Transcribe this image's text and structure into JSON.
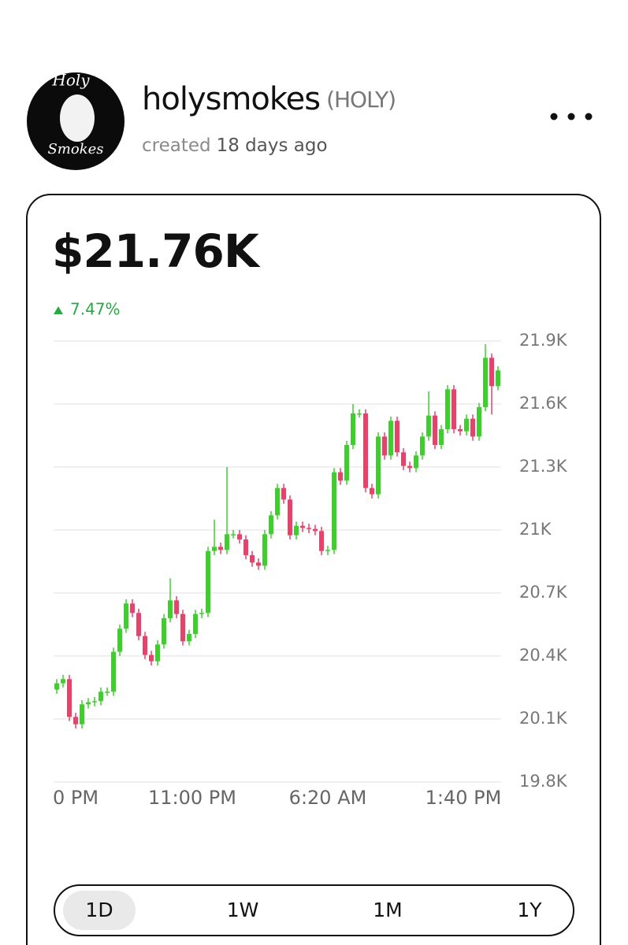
{
  "header": {
    "avatar_top": "Holy",
    "avatar_bottom": "Smokes",
    "name": "holysmokes",
    "ticker": "(HOLY)",
    "created_prefix": "created",
    "created_age": "18 days ago"
  },
  "price": "$21.76K",
  "change": "7.47%",
  "chart_data": {
    "type": "candlestick",
    "up_color": "#3ecf2d",
    "down_color": "#e8416a",
    "grid": true,
    "open": [
      20240,
      20270,
      20290,
      20110,
      20075,
      20170,
      20180,
      20185,
      20230,
      20230,
      20420,
      20530,
      20650,
      20605,
      20495,
      20405,
      20375,
      20455,
      20580,
      20665,
      20600,
      20470,
      20505,
      20600,
      20605,
      20900,
      20920,
      20905,
      20980,
      20980,
      20955,
      20880,
      20845,
      20830,
      20980,
      21070,
      21200,
      21145,
      20975,
      21020,
      21010,
      21005,
      20995,
      20900,
      20905,
      21275,
      21235,
      21405,
      21555,
      21555,
      21200,
      21170,
      21445,
      21355,
      21520,
      21370,
      21305,
      21295,
      21355,
      21445,
      21545,
      21405,
      21480,
      21670,
      21480,
      21470,
      21530,
      21445,
      21585,
      21820,
      21685
    ],
    "high": [
      20290,
      20310,
      20310,
      20130,
      20190,
      20200,
      20205,
      20250,
      20250,
      20440,
      20550,
      20670,
      20670,
      20625,
      20515,
      20425,
      20475,
      20600,
      20770,
      20685,
      20620,
      20525,
      20620,
      20625,
      20920,
      21050,
      20940,
      21300,
      21000,
      21000,
      20975,
      20900,
      20865,
      21000,
      21090,
      21220,
      21220,
      21165,
      21040,
      21040,
      21030,
      21025,
      21015,
      20925,
      21295,
      21295,
      21425,
      21600,
      21575,
      21575,
      21220,
      21465,
      21465,
      21540,
      21540,
      21390,
      21325,
      21375,
      21465,
      21660,
      21565,
      21500,
      21690,
      21690,
      21500,
      21550,
      21550,
      21605,
      21885,
      21840,
      21780
    ],
    "low": [
      20220,
      20250,
      20090,
      20055,
      20055,
      20150,
      20160,
      20165,
      20210,
      20210,
      20400,
      20510,
      20585,
      20475,
      20385,
      20355,
      20355,
      20435,
      20560,
      20580,
      20450,
      20450,
      20485,
      20580,
      20585,
      20880,
      20885,
      20885,
      20960,
      20935,
      20860,
      20825,
      20810,
      20810,
      20960,
      21050,
      21125,
      20955,
      20955,
      20990,
      20985,
      20975,
      20880,
      20880,
      20885,
      21215,
      21215,
      21385,
      21535,
      21180,
      21150,
      21150,
      21335,
      21335,
      21350,
      21285,
      21275,
      21275,
      21335,
      21425,
      21385,
      21385,
      21460,
      21460,
      21450,
      21450,
      21425,
      21425,
      21565,
      21550,
      21665
    ],
    "close": [
      20270,
      20290,
      20110,
      20075,
      20170,
      20180,
      20185,
      20230,
      20230,
      20420,
      20530,
      20650,
      20605,
      20495,
      20405,
      20375,
      20455,
      20580,
      20665,
      20600,
      20470,
      20505,
      20600,
      20605,
      20900,
      20920,
      20905,
      20980,
      20980,
      20955,
      20880,
      20845,
      20830,
      20980,
      21070,
      21200,
      21145,
      20975,
      21020,
      21010,
      21005,
      20995,
      20900,
      20905,
      21275,
      21235,
      21405,
      21555,
      21555,
      21200,
      21170,
      21445,
      21355,
      21520,
      21370,
      21305,
      21295,
      21355,
      21445,
      21545,
      21405,
      21480,
      21670,
      21480,
      21470,
      21530,
      21445,
      21585,
      21820,
      21685,
      21760
    ],
    "xlim": [
      -0.5,
      70.5
    ],
    "xticks": [
      {
        "value": 3,
        "label": "0 PM"
      },
      {
        "value": 21.5,
        "label": "11:00 PM"
      },
      {
        "value": 43,
        "label": "6:20 AM"
      },
      {
        "value": 64.5,
        "label": "1:40 PM"
      }
    ],
    "ylim": [
      19800,
      21900
    ],
    "yticks": [
      {
        "value": 19800,
        "label": "19.8K"
      },
      {
        "value": 20100,
        "label": "20.1K"
      },
      {
        "value": 20400,
        "label": "20.4K"
      },
      {
        "value": 20700,
        "label": "20.7K"
      },
      {
        "value": 21000,
        "label": "21K"
      },
      {
        "value": 21300,
        "label": "21.3K"
      },
      {
        "value": 21600,
        "label": "21.6K"
      },
      {
        "value": 21900,
        "label": "21.9K"
      }
    ]
  },
  "ranges": [
    "1D",
    "1W",
    "1M",
    "1Y"
  ],
  "selected_range": "1D"
}
